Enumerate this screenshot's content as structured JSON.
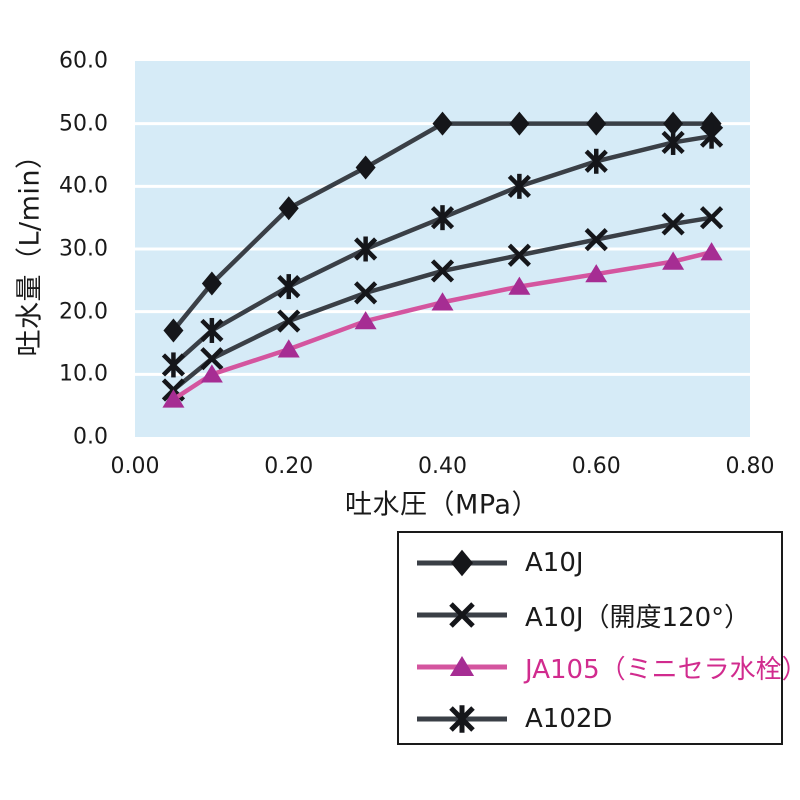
{
  "chart_data": {
    "type": "line",
    "x": [
      0.05,
      0.1,
      0.2,
      0.3,
      0.4,
      0.5,
      0.6,
      0.7,
      0.75
    ],
    "series": [
      {
        "name": "A10J",
        "marker": "diamond",
        "line_color": "#3a3f46",
        "marker_color": "#15161a",
        "label_color": "#1a1a1a",
        "values": [
          17,
          24.5,
          36.5,
          43,
          50,
          50,
          50,
          50,
          50
        ]
      },
      {
        "name": "A10J（開度120°）",
        "marker": "x",
        "line_color": "#3a3f46",
        "marker_color": "#15161a",
        "label_color": "#1a1a1a",
        "values": [
          7.5,
          12.5,
          18.5,
          23,
          26.5,
          29,
          31.5,
          34,
          35
        ]
      },
      {
        "name": "JA105（ミニセラ水栓）",
        "marker": "triangle",
        "line_color": "#d4559f",
        "marker_color": "#a62d93",
        "label_color": "#d12b8e",
        "values": [
          6,
          10,
          14,
          18.5,
          21.5,
          24,
          26,
          28,
          29.5
        ]
      },
      {
        "name": "A102D",
        "marker": "asterisk",
        "line_color": "#3a3f46",
        "marker_color": "#15161a",
        "label_color": "#1a1a1a",
        "values": [
          11.5,
          17,
          24,
          30,
          35,
          40,
          44,
          47,
          48
        ]
      }
    ],
    "title": "",
    "xlabel": "吐水圧（MPa）",
    "ylabel": "吐水量（L/min）",
    "xlim": [
      0,
      0.8
    ],
    "ylim": [
      0,
      60
    ],
    "xticks": {
      "values": [
        0,
        0.2,
        0.4,
        0.6,
        0.8
      ],
      "labels": [
        "0.00",
        "0.20",
        "0.40",
        "0.60",
        "0.80"
      ]
    },
    "yticks": {
      "values": [
        0,
        10,
        20,
        30,
        40,
        50,
        60
      ],
      "labels": [
        "0.0",
        "10.0",
        "20.0",
        "30.0",
        "40.0",
        "50.0",
        "60.0"
      ]
    },
    "grid": "horizontal",
    "gridline_color": "#ffffff",
    "plot_bg_color": "#d6ebf7",
    "legend_position": "below-right"
  }
}
